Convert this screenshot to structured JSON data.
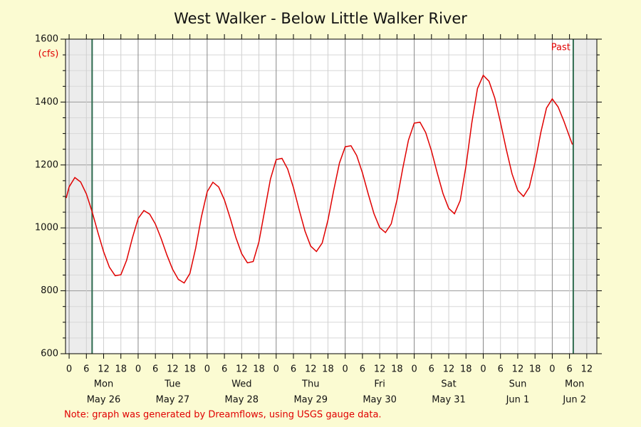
{
  "chart_data": {
    "type": "line",
    "title": "West Walker - Below Little Walker River",
    "y_unit_label": "(cfs)",
    "past_label": "Past",
    "note": "Note: graph was generated by Dreamflows, using USGS gauge data.",
    "xlim": [
      -1.25,
      183.5
    ],
    "ylim": [
      600,
      1600
    ],
    "yticks": [
      600,
      800,
      1000,
      1200,
      1400,
      1600
    ],
    "yminor_ticks": [
      650,
      700,
      750,
      850,
      900,
      950,
      1050,
      1100,
      1150,
      1250,
      1300,
      1350,
      1450,
      1500,
      1550
    ],
    "xticks": [
      0,
      6,
      12,
      18,
      {
        "value": 24,
        "label": "0"
      },
      {
        "value": 30,
        "label": "6"
      },
      {
        "value": 36,
        "label": "12"
      },
      {
        "value": 42,
        "label": "18"
      },
      {
        "value": 48,
        "label": "0"
      },
      {
        "value": 54,
        "label": "6"
      },
      {
        "value": 60,
        "label": "12"
      },
      {
        "value": 66,
        "label": "18"
      },
      {
        "value": 72,
        "label": "0"
      },
      {
        "value": 78,
        "label": "6"
      },
      {
        "value": 84,
        "label": "12"
      },
      {
        "value": 90,
        "label": "18"
      },
      {
        "value": 96,
        "label": "0"
      },
      {
        "value": 102,
        "label": "6"
      },
      {
        "value": 108,
        "label": "12"
      },
      {
        "value": 114,
        "label": "18"
      },
      {
        "value": 120,
        "label": "0"
      },
      {
        "value": 126,
        "label": "6"
      },
      {
        "value": 132,
        "label": "12"
      },
      {
        "value": 138,
        "label": "18"
      },
      {
        "value": 144,
        "label": "0"
      },
      {
        "value": 150,
        "label": "6"
      },
      {
        "value": 156,
        "label": "12"
      },
      {
        "value": 162,
        "label": "18"
      },
      {
        "value": 168,
        "label": "0"
      },
      {
        "value": 174,
        "label": "6"
      },
      {
        "value": 180,
        "label": "12"
      }
    ],
    "days": [
      {
        "weekday": "Mon",
        "date": "May 26"
      },
      {
        "weekday": "Tue",
        "date": "May 27"
      },
      {
        "weekday": "Wed",
        "date": "May 28"
      },
      {
        "weekday": "Thu",
        "date": "May 29"
      },
      {
        "weekday": "Fri",
        "date": "May 30"
      },
      {
        "weekday": "Sat",
        "date": "May 31"
      },
      {
        "weekday": "Sun",
        "date": "Jun 1"
      },
      {
        "weekday": "Mon",
        "date": "Jun 2"
      }
    ],
    "range_markers": [
      8,
      175.3
    ],
    "grid": true,
    "series": [
      {
        "name": "Flow",
        "color": "#e00000",
        "x": [
          -1,
          0,
          2,
          4,
          6,
          8,
          10,
          12,
          14,
          16,
          18,
          20,
          22,
          24,
          26,
          28,
          30,
          32,
          34,
          36,
          38,
          40,
          42,
          44,
          46,
          48,
          50,
          52,
          54,
          56,
          58,
          60,
          62,
          64,
          66,
          68,
          70,
          72,
          74,
          76,
          78,
          80,
          82,
          84,
          86,
          88,
          90,
          92,
          94,
          96,
          98,
          100,
          102,
          104,
          106,
          108,
          110,
          112,
          114,
          116,
          118,
          120,
          122,
          124,
          126,
          128,
          130,
          132,
          134,
          136,
          138,
          140,
          142,
          144,
          146,
          148,
          150,
          152,
          154,
          156,
          158,
          160,
          162,
          164,
          166,
          168,
          170,
          172,
          174,
          175
        ],
        "values": [
          1095,
          1130,
          1160,
          1146,
          1108,
          1051,
          986,
          924,
          875,
          848,
          851,
          897,
          968,
          1030,
          1055,
          1044,
          1012,
          966,
          914,
          868,
          836,
          825,
          855,
          935,
          1035,
          1115,
          1145,
          1130,
          1089,
          1031,
          969,
          918,
          889,
          893,
          955,
          1055,
          1155,
          1217,
          1221,
          1187,
          1128,
          1057,
          990,
          942,
          925,
          952,
          1025,
          1119,
          1206,
          1258,
          1261,
          1230,
          1175,
          1108,
          1045,
          1001,
          985,
          1013,
          1089,
          1188,
          1279,
          1333,
          1336,
          1303,
          1245,
          1175,
          1109,
          1062,
          1045,
          1087,
          1197,
          1333,
          1443,
          1485,
          1466,
          1413,
          1335,
          1250,
          1172,
          1119,
          1100,
          1129,
          1207,
          1303,
          1381,
          1410,
          1385,
          1340,
          1290,
          1265
        ]
      }
    ]
  }
}
